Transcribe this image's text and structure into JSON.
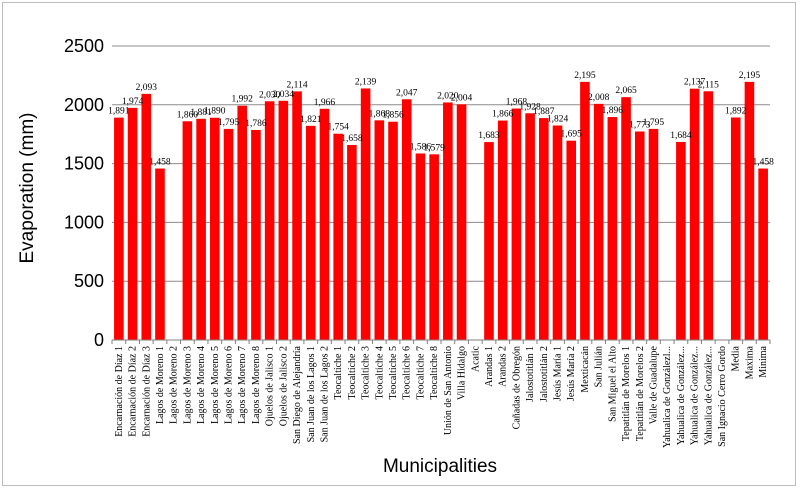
{
  "chart_data": {
    "type": "bar",
    "title": "",
    "xlabel": "Municipalities",
    "ylabel": "Evaporation (mm)",
    "ylim": [
      0,
      2500
    ],
    "yticks": [
      0,
      500,
      1000,
      1500,
      2000,
      2500
    ],
    "grid": true,
    "legend": "none",
    "bar_color": "#ff0000",
    "categories": [
      "Encarnación de Díaz 1",
      "Encarnación de Díaz 2",
      "Encarnación de Díaz 3",
      "Lagos de Moreno 1",
      "Lagos de Moreno 2",
      "Lagos de Moreno 3",
      "Lagos de Moreno 4",
      "Lagos de Moreno 5",
      "Lagos de Moreno 6",
      "Lagos de Moreno 7",
      "Lagos de Moreno 8",
      "Ojuelos de Jalisco 1",
      "Ojuelos de Jalisco 2",
      "San Diego de Alejandría",
      "San Juan de los Lagos 1",
      "San Juan de los Lagos 2",
      "Teocaltiche 1",
      "Teocaltiche 2",
      "Teocaltiche 3",
      "Teocaltiche 4",
      "Teocaltiche 5",
      "Teocaltiche 6",
      "Teocaltiche 7",
      "Teocaltiche 8",
      "Unión de San Antonio",
      "Villa Hidalgo",
      "Acatic",
      "Arandas 1",
      "Arandas 2",
      "Cañadas de Obregón",
      "Jalostotitlán 1",
      "Jalostotitlán 2",
      "Jesús María 1",
      "Jesús María 2",
      "Mexticacán",
      "San Julián",
      "San Miguel el Alto",
      "Tepatitlán de Morelos 1",
      "Tepatitlán de Morelos 2",
      "Valle de Guadalupe",
      "Yahualica de Gonzálezl...",
      "Yahualica de González...",
      "Yahualica de González...",
      "Yahualica de González...",
      "San Ignacio Cerro Gordo",
      "Media",
      "Maxima",
      "Minima"
    ],
    "values": [
      1891,
      1974,
      2093,
      1458,
      null,
      1860,
      1881,
      1890,
      1795,
      1992,
      1786,
      2030,
      2034,
      2114,
      1821,
      1966,
      1754,
      1658,
      2139,
      1868,
      1856,
      2047,
      1586,
      1579,
      2020,
      2004,
      null,
      1683,
      1866,
      1968,
      1928,
      1887,
      1824,
      1695,
      2195,
      2008,
      1896,
      2065,
      1773,
      1795,
      null,
      1684,
      2137,
      2115,
      null,
      1892,
      2195,
      1458
    ],
    "data_labels": [
      "1,891",
      "1,974",
      "2,093",
      "1,458",
      "",
      "1,860",
      "1,881",
      "1,890",
      "1,795",
      "1,992",
      "1,786",
      "2,030",
      "2,034",
      "2,114",
      "1,821",
      "1,966",
      "1,754",
      "1,658",
      "2,139",
      "1,868",
      "1,856",
      "2,047",
      "1,586",
      "1,579",
      "2,020",
      "2,004",
      "",
      "1,683",
      "1,866",
      "1,968",
      "1,928",
      "1,887",
      "1,824",
      "1,695",
      "2,195",
      "2,008",
      "1,896",
      "2,065",
      "1,773",
      "1,795",
      "",
      "1,684",
      "2,137",
      "2,115",
      "",
      "1,892",
      "2,195",
      "1,458"
    ]
  }
}
